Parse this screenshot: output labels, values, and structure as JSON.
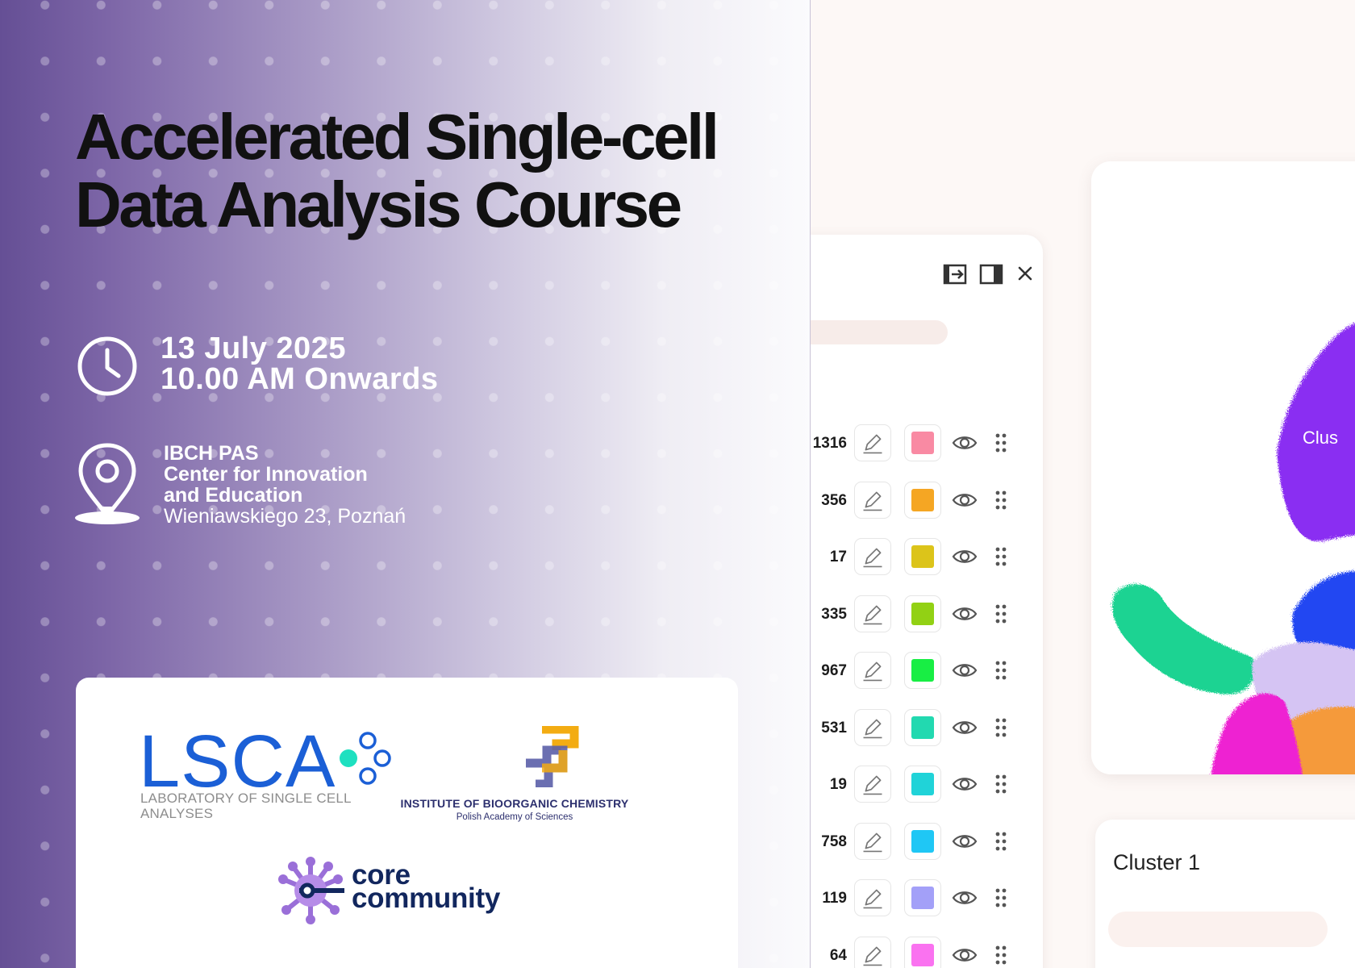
{
  "title": {
    "line1": "Accelerated Single-cell",
    "line2": "Data Analysis Course"
  },
  "date": {
    "line1": "13 July 2025",
    "line2": "10.00 AM Onwards"
  },
  "venue": {
    "line1": "IBCH PAS",
    "line2": "Center for Innovation",
    "line3": "and Education",
    "address": "Wieniawskiego 23, Poznań"
  },
  "logos": {
    "lsca": {
      "word": "LSCA",
      "sub1": "LABORATORY OF SINGLE CELL",
      "sub2": "ANALYSES"
    },
    "ibch": {
      "name": "INSTITUTE OF BIOORGANIC CHEMISTRY",
      "sub": "Polish Academy of Sciences"
    },
    "core": {
      "line1": "core",
      "line2": "community"
    }
  },
  "panel": {
    "icons": [
      "export-icon",
      "sidebar-toggle-icon",
      "close-icon"
    ],
    "clusters": [
      {
        "count": "1316",
        "color": "#f98aa3"
      },
      {
        "count": "356",
        "color": "#f5a623"
      },
      {
        "count": "17",
        "color": "#dcc41a"
      },
      {
        "count": "335",
        "color": "#92d114"
      },
      {
        "count": "967",
        "color": "#18ee44"
      },
      {
        "count": "531",
        "color": "#22d9b0"
      },
      {
        "count": "19",
        "color": "#20d3d8"
      },
      {
        "count": "758",
        "color": "#1fc7f5"
      },
      {
        "count": "119",
        "color": "#a3a0f8"
      },
      {
        "count": "64",
        "color": "#fa72f0"
      }
    ]
  },
  "plot": {
    "cluster_label": "Clus"
  },
  "info": {
    "title": "Cluster 1"
  },
  "colors": {
    "accent_purple": "#654f95",
    "lsca_blue": "#1b5fd6",
    "lsca_teal": "#1ee0c0",
    "core_navy": "#12275e"
  }
}
